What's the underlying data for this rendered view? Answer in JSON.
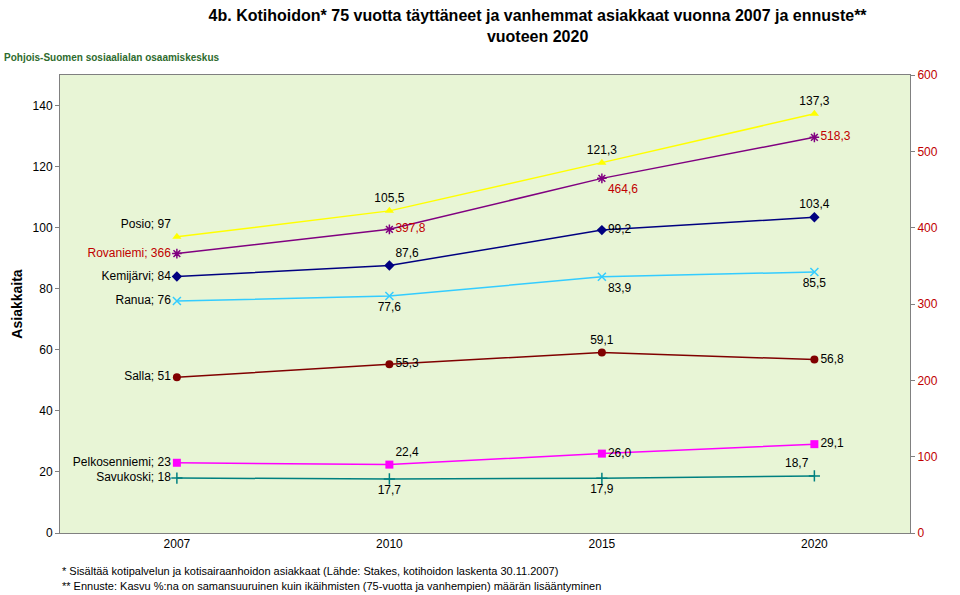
{
  "chart_data": {
    "type": "line",
    "title": "4b. Kotihoidon* 75 vuotta täyttäneet ja vanhemmat asiakkaat vuonna 2007 ja ennuste**\nvuoteen 2020",
    "y_label": "Asiakkaita",
    "annotations": [
      "Pohjois-Suomen sosiaalialan osaamiskeskus",
      "* Sisältää kotipalvelun ja kotisairaanhoidon asiakkaat (Lähde: Stakes, kotihoidon laskenta 30.11.2007)",
      "** Ennuste: Kasvu %:na on samansuuruinen kuin ikäihmisten (75-vuotta ja vanhempien) määrän lisääntyminen"
    ],
    "categories": [
      "2007",
      "2010",
      "2015",
      "2020"
    ],
    "ylim": [
      0,
      150
    ],
    "yticks": [
      0,
      20,
      40,
      60,
      80,
      100,
      120,
      140
    ],
    "y2lim": [
      0,
      600
    ],
    "y2ticks": [
      0,
      100,
      200,
      300,
      400,
      500,
      600
    ],
    "grid": false,
    "data_labels": true,
    "series": [
      {
        "name": "Posio",
        "color": "#ffff00",
        "marker": "triangle",
        "values": [
          97,
          105.5,
          121.3,
          137.3
        ],
        "value_labels": [
          "Posio; 97",
          "105,5",
          "121,3",
          "137,3"
        ]
      },
      {
        "name": "Rovaniemi",
        "color": "#800080",
        "marker": "star",
        "axis": "y2",
        "values": [
          366,
          397.8,
          464.6,
          518.3
        ],
        "value_labels": [
          "Rovaniemi; 366",
          "397,8",
          "464,6",
          "518,3"
        ]
      },
      {
        "name": "Kemijärvi",
        "color": "#000080",
        "marker": "diamond",
        "values": [
          84,
          87.6,
          99.2,
          103.4
        ],
        "value_labels": [
          "Kemijärvi; 84",
          "87,6",
          "99,2",
          "103,4"
        ]
      },
      {
        "name": "Ranua",
        "color": "#33ccff",
        "marker": "x",
        "values": [
          76,
          77.6,
          83.9,
          85.5
        ],
        "value_labels": [
          "Ranua; 76",
          "77,6",
          "83,9",
          "85,5"
        ]
      },
      {
        "name": "Salla",
        "color": "#800000",
        "marker": "circle",
        "values": [
          51,
          55.3,
          59.1,
          56.8
        ],
        "value_labels": [
          "Salla; 51",
          "55,3",
          "59,1",
          "56,8"
        ]
      },
      {
        "name": "Pelkosenniemi",
        "color": "#ff00ff",
        "marker": "square",
        "values": [
          23,
          22.4,
          26.0,
          29.1
        ],
        "value_labels": [
          "Pelkosenniemi; 23",
          "22,4",
          "26,0",
          "29,1"
        ]
      },
      {
        "name": "Savukoski",
        "color": "#008080",
        "marker": "plus",
        "values": [
          18,
          17.7,
          17.9,
          18.7
        ],
        "value_labels": [
          "Savukoski; 18",
          "17,7",
          "17,9",
          "18,7"
        ]
      }
    ]
  }
}
